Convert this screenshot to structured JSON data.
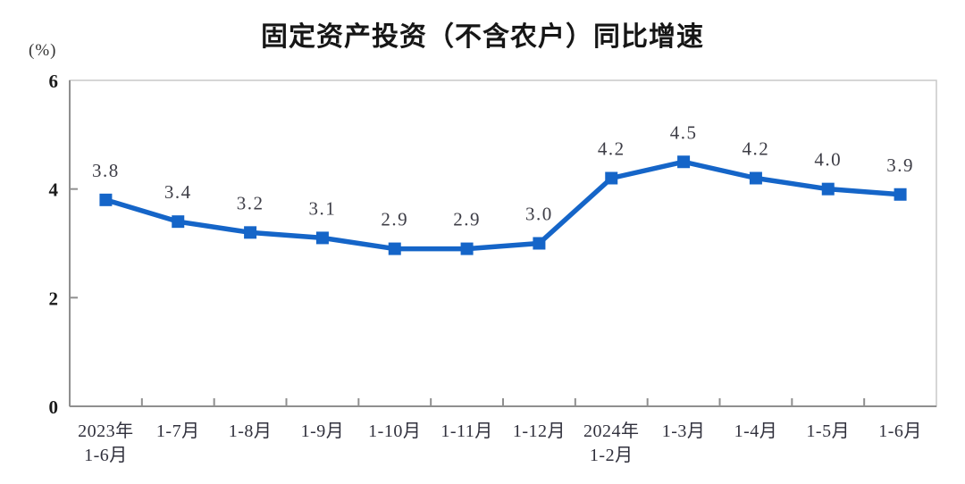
{
  "title": "固定资产投资（不含农户）同比增速",
  "y_axis_unit": "(%)",
  "chart_data": {
    "type": "line",
    "title": "固定资产投资（不含农户）同比增速",
    "categories": [
      "2023年\n1-6月",
      "1-7月",
      "1-8月",
      "1-9月",
      "1-10月",
      "1-11月",
      "1-12月",
      "2024年\n1-2月",
      "1-3月",
      "1-4月",
      "1-5月",
      "1-6月"
    ],
    "values": [
      3.8,
      3.4,
      3.2,
      3.1,
      2.9,
      2.9,
      3.0,
      4.2,
      4.5,
      4.2,
      4.0,
      3.9
    ],
    "data_labels": [
      "3.8",
      "3.4",
      "3.2",
      "3.1",
      "2.9",
      "2.9",
      "3.0",
      "4.2",
      "4.5",
      "4.2",
      "4.0",
      "3.9"
    ],
    "xlabel": "",
    "ylabel": "(%)",
    "ylim": [
      0,
      6
    ],
    "yticks": [
      0,
      2,
      4,
      6
    ],
    "grid": false,
    "legend_position": "none",
    "marker": "square"
  },
  "colors": {
    "line": "#1565c8",
    "marker": "#1565c8",
    "axis": "#8f8f8f",
    "frame": "#c9c9c9",
    "title_text": "#161616",
    "data_label_text": "#3d3d46",
    "tick_label_text": "#1a1a1a",
    "background": "#ffffff"
  }
}
